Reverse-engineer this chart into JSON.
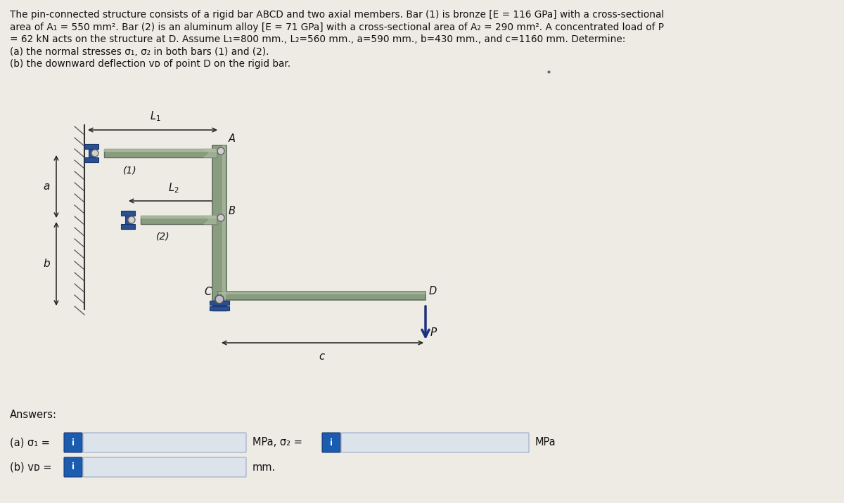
{
  "title_lines": [
    "The pin-connected structure consists of a rigid bar ABCD and two axial members. Bar (1) is bronze [E = 116 GPa] with a cross-sectional",
    "area of A₁ = 550 mm². Bar (2) is an aluminum alloy [E = 71 GPa] with a cross-sectional area of A₂ = 290 mm². A concentrated load of P",
    "= 62 kN acts on the structure at D. Assume L₁=800 mm., L₂=560 mm., a=590 mm., b=430 mm., and c=1160 mm. Determine:",
    "(a) the normal stresses σ₁, σ₂ in both bars (1) and (2).",
    "(b) the downward deflection vᴅ of point D on the rigid bar."
  ],
  "bg_color": "#eeebe5",
  "bar_color": "#8a9c80",
  "bar_highlight": "#b0c0a4",
  "bar_dark": "#607060",
  "pin_color": "#2a5090",
  "pin_dark": "#1a3570",
  "wall_color": "#888888",
  "arrow_color": "#1a3080",
  "text_color": "#111111",
  "info_btn_color": "#1a5cb0",
  "info_btn_text": "#ffffff",
  "input_box_color": "#dde3ea",
  "input_box_border": "#99aacc"
}
